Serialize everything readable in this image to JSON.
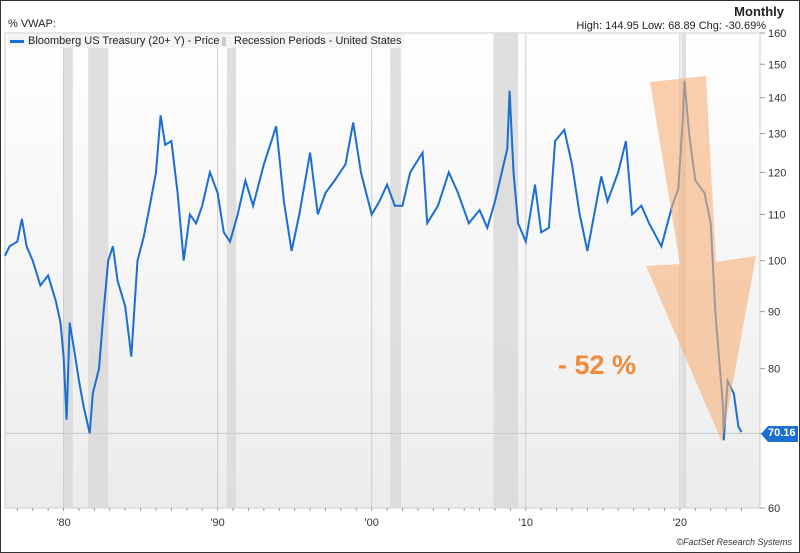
{
  "header": {
    "frequency": "Monthly",
    "stats": "High: 144.95 Low: 68.89 Chg: -30.69%",
    "scale_label": "%  VWAP:"
  },
  "footer": {
    "copyright": "©FactSet Research Systems"
  },
  "annotation": {
    "text": "- 52 %",
    "color": "#f08a3a"
  },
  "colors": {
    "line": "#1a6fd0",
    "recession": "#d9d9d9",
    "arrow": "#f7c096"
  },
  "chart_data": {
    "type": "line",
    "title": "Monthly",
    "yscale": "log",
    "ylim": [
      60,
      160
    ],
    "xlim": [
      1976.2,
      2025.2
    ],
    "x_ticks": [
      {
        "v": 1980,
        "label": "'80"
      },
      {
        "v": 1990,
        "label": "'90"
      },
      {
        "v": 2000,
        "label": "'00"
      },
      {
        "v": 2010,
        "label": "'10"
      },
      {
        "v": 2020,
        "label": "'20"
      }
    ],
    "y_ticks": [
      60,
      70,
      80,
      90,
      100,
      110,
      120,
      130,
      140,
      150,
      160
    ],
    "legend": [
      {
        "label": "Bloomberg US Treasury (20+ Y) - Price"
      },
      {
        "label": "Recession Periods - United States"
      }
    ],
    "last_value": "70.16",
    "recessions": [
      [
        1980.0,
        1980.6
      ],
      [
        1981.6,
        1982.9
      ],
      [
        1990.6,
        1991.2
      ],
      [
        2001.2,
        2001.9
      ],
      [
        2007.9,
        2009.5
      ],
      [
        2020.1,
        2020.4
      ]
    ],
    "series": [
      {
        "name": "Bloomberg US Treasury (20+ Y) - Price",
        "points": [
          [
            1976.2,
            101
          ],
          [
            1976.5,
            103
          ],
          [
            1977,
            104
          ],
          [
            1977.3,
            109
          ],
          [
            1977.6,
            103
          ],
          [
            1978,
            100
          ],
          [
            1978.5,
            95
          ],
          [
            1979,
            97
          ],
          [
            1979.5,
            92
          ],
          [
            1979.8,
            88
          ],
          [
            1980,
            82
          ],
          [
            1980.2,
            72
          ],
          [
            1980.4,
            88
          ],
          [
            1980.7,
            83
          ],
          [
            1981,
            78
          ],
          [
            1981.3,
            74
          ],
          [
            1981.7,
            70
          ],
          [
            1981.9,
            76
          ],
          [
            1982.3,
            80
          ],
          [
            1982.6,
            90
          ],
          [
            1982.9,
            100
          ],
          [
            1983.2,
            103
          ],
          [
            1983.5,
            96
          ],
          [
            1984,
            91
          ],
          [
            1984.4,
            82
          ],
          [
            1984.8,
            100
          ],
          [
            1985.2,
            105
          ],
          [
            1985.6,
            112
          ],
          [
            1986,
            120
          ],
          [
            1986.3,
            135
          ],
          [
            1986.6,
            127
          ],
          [
            1987,
            128
          ],
          [
            1987.4,
            115
          ],
          [
            1987.8,
            100
          ],
          [
            1988.2,
            110
          ],
          [
            1988.6,
            108
          ],
          [
            1989,
            112
          ],
          [
            1989.5,
            120
          ],
          [
            1990,
            115
          ],
          [
            1990.4,
            106
          ],
          [
            1990.8,
            104
          ],
          [
            1991.3,
            110
          ],
          [
            1991.8,
            118
          ],
          [
            1992.3,
            112
          ],
          [
            1993,
            122
          ],
          [
            1993.8,
            132
          ],
          [
            1994.3,
            113
          ],
          [
            1994.8,
            102
          ],
          [
            1995.3,
            110
          ],
          [
            1996,
            125
          ],
          [
            1996.5,
            110
          ],
          [
            1997,
            115
          ],
          [
            1997.6,
            118
          ],
          [
            1998.3,
            122
          ],
          [
            1998.8,
            133
          ],
          [
            1999.3,
            120
          ],
          [
            2000,
            110
          ],
          [
            2000.5,
            113
          ],
          [
            2001,
            117
          ],
          [
            2001.5,
            112
          ],
          [
            2002,
            112
          ],
          [
            2002.5,
            120
          ],
          [
            2003.3,
            125
          ],
          [
            2003.6,
            108
          ],
          [
            2004.3,
            112
          ],
          [
            2005,
            120
          ],
          [
            2005.6,
            115
          ],
          [
            2006.3,
            108
          ],
          [
            2007,
            111
          ],
          [
            2007.5,
            107
          ],
          [
            2008,
            113
          ],
          [
            2008.8,
            126
          ],
          [
            2008.95,
            142
          ],
          [
            2009.2,
            120
          ],
          [
            2009.5,
            108
          ],
          [
            2010,
            104
          ],
          [
            2010.6,
            117
          ],
          [
            2011,
            106
          ],
          [
            2011.5,
            107
          ],
          [
            2011.9,
            128
          ],
          [
            2012.5,
            131
          ],
          [
            2013,
            122
          ],
          [
            2013.5,
            110
          ],
          [
            2014,
            102
          ],
          [
            2014.9,
            119
          ],
          [
            2015.3,
            113
          ],
          [
            2016,
            120
          ],
          [
            2016.5,
            128
          ],
          [
            2016.9,
            110
          ],
          [
            2017.5,
            112
          ],
          [
            2018,
            108
          ],
          [
            2018.8,
            103
          ],
          [
            2019.5,
            112
          ],
          [
            2019.9,
            116
          ],
          [
            2020.2,
            135
          ],
          [
            2020.3,
            145
          ],
          [
            2020.6,
            130
          ],
          [
            2021,
            118
          ],
          [
            2021.6,
            115
          ],
          [
            2022,
            108
          ],
          [
            2022.3,
            90
          ],
          [
            2022.8,
            74
          ],
          [
            2022.85,
            69
          ],
          [
            2023.1,
            78
          ],
          [
            2023.5,
            76
          ],
          [
            2023.8,
            71
          ],
          [
            2024,
            70.16
          ]
        ]
      }
    ]
  }
}
